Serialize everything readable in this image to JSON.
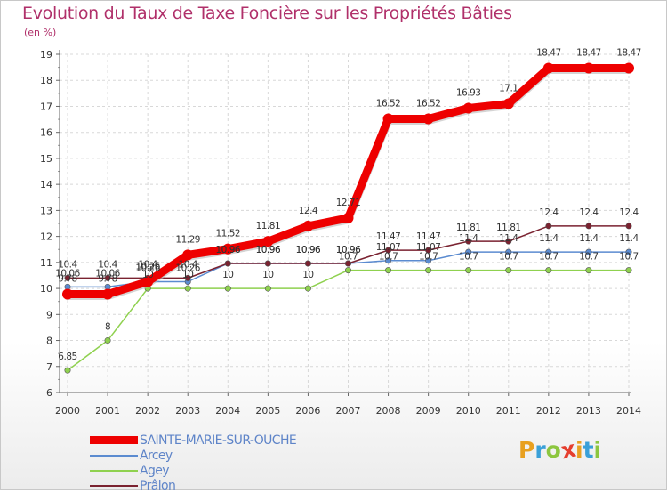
{
  "title": "Evolution du Taux de Taxe Foncière sur les Propriétés Bâties",
  "subtitle": "(en %)",
  "brand": "Proxiti",
  "colors": {
    "title": "#b0306a",
    "legend_text": "#5e84c8",
    "grid": "#d8d8d8",
    "axis_text": "#333333",
    "brand_letters": [
      "#e8a020",
      "#3aa0d8",
      "#8cc63f",
      "#e53e2e",
      "#e8a020",
      "#3aa0d8",
      "#8cc63f"
    ]
  },
  "chart_data": {
    "type": "line",
    "title": "Evolution du Taux de Taxe Foncière sur les Propriétés Bâties",
    "ylabel": "(en %)",
    "xlabel": "",
    "x": [
      "2000",
      "2001",
      "2002",
      "2003",
      "2004",
      "2005",
      "2006",
      "2007",
      "2008",
      "2009",
      "2010",
      "2011",
      "2012",
      "2013",
      "2014"
    ],
    "ylim": [
      6,
      19
    ],
    "yticks": [
      6,
      7,
      8,
      9,
      10,
      11,
      12,
      13,
      14,
      15,
      16,
      17,
      18,
      19
    ],
    "grid": true,
    "legend_position": "bottom-left",
    "series": [
      {
        "name": "SAINTE-MARIE-SUR-OUCHE",
        "color": "#ee0000",
        "values": [
          9.78,
          9.78,
          10.26,
          11.29,
          11.52,
          11.81,
          12.4,
          12.71,
          16.52,
          16.52,
          16.93,
          17.1,
          18.47,
          18.47,
          18.47
        ],
        "labels": [
          "9.78",
          "9.78",
          "10.26",
          "11.29",
          "11.52",
          "11.81",
          "12.4",
          "12.71",
          "16.52",
          "16.52",
          "16.93",
          "17.1",
          "18.47",
          "18.47",
          "18.47"
        ]
      },
      {
        "name": "Arcey",
        "color": "#5b8bd0",
        "values": [
          10.06,
          10.06,
          10.26,
          10.26,
          10.96,
          10.96,
          10.96,
          10.96,
          11.07,
          11.07,
          11.4,
          11.4,
          11.4,
          11.4,
          11.4
        ],
        "labels": [
          "10.06",
          "10.06",
          "10.26",
          "10.26",
          "10.96",
          "10.96",
          "10.96",
          "10.96",
          "11.07",
          "11.07",
          "11.4",
          "11.4",
          "11.4",
          "11.4",
          "11.4"
        ]
      },
      {
        "name": "Agey",
        "color": "#8fd14f",
        "values": [
          6.85,
          8,
          10,
          10,
          10,
          10,
          10,
          10.7,
          10.7,
          10.7,
          10.7,
          10.7,
          10.7,
          10.7,
          10.7
        ],
        "labels": [
          "6.85",
          "8",
          "10",
          "10",
          "10",
          "10",
          "10",
          "10.7",
          "10.7",
          "10.7",
          "10.7",
          "10.7",
          "10.7",
          "10.7",
          "10.7"
        ]
      },
      {
        "name": "Prâlon",
        "color": "#7a2230",
        "values": [
          10.4,
          10.4,
          10.4,
          10.4,
          10.96,
          10.96,
          10.96,
          10.96,
          11.47,
          11.47,
          11.81,
          11.81,
          12.4,
          12.4,
          12.4
        ],
        "labels": [
          "10.4",
          "10.4",
          "10.4",
          "10.4",
          "10.96",
          "10.96",
          "10.96",
          "10.96",
          "11.47",
          "11.47",
          "11.81",
          "11.81",
          "12.4",
          "12.4",
          "12.4"
        ]
      }
    ]
  }
}
